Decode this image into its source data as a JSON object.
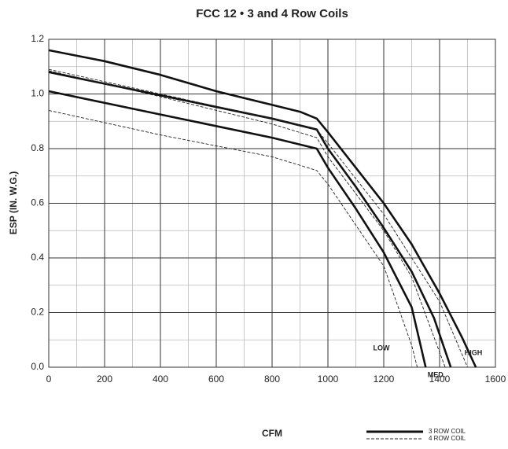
{
  "chart_data": {
    "type": "line",
    "title": "FCC 12 • 3 and 4 Row Coils",
    "x_label": "CFM",
    "y_label": "ESP (IN. W.G.)",
    "xlim": [
      0,
      1600
    ],
    "ylim": [
      0,
      1.2
    ],
    "xticks": [
      0,
      200,
      400,
      600,
      800,
      1000,
      1200,
      1400,
      1600
    ],
    "yticks": [
      {
        "value": 0,
        "label": "0.0"
      },
      0.2,
      0.4,
      0.6,
      0.8,
      {
        "value": 1,
        "label": "1.0"
      },
      1.2
    ],
    "x_minor_ticks": [
      100,
      300,
      500,
      700,
      900,
      1100,
      1300,
      1500
    ],
    "y_minor_ticks": [
      0.1,
      0.3,
      0.5,
      0.7,
      0.9,
      1.1
    ],
    "grid": true,
    "series": [
      {
        "name": "3 ROW COIL",
        "color": "#111111",
        "dashed": false,
        "curves": [
          {
            "x": [
              0,
              200,
              400,
              600,
              800,
              900,
              960,
              1000,
              1100,
              1200,
              1300,
              1400,
              1480,
              1530
            ],
            "values": [
              1.16,
              1.12,
              1.07,
              1.01,
              0.96,
              0.935,
              0.91,
              0.86,
              0.73,
              0.6,
              0.45,
              0.27,
              0.11,
              0
            ]
          },
          {
            "x": [
              0,
              400,
              800,
              960,
              1000,
              1100,
              1200,
              1300,
              1380,
              1440
            ],
            "values": [
              1.08,
              0.995,
              0.91,
              0.87,
              0.8,
              0.66,
              0.51,
              0.35,
              0.18,
              0
            ]
          },
          {
            "x": [
              0,
              400,
              800,
              960,
              1000,
              1100,
              1200,
              1300,
              1350
            ],
            "values": [
              1.01,
              0.925,
              0.84,
              0.8,
              0.73,
              0.58,
              0.42,
              0.22,
              0
            ]
          }
        ]
      },
      {
        "name": "4 ROW COIL",
        "color": "#222222",
        "dashed": true,
        "curves": [
          {
            "x": [
              0,
              400,
              800,
              960,
              1000,
              1200,
              1400,
              1500
            ],
            "values": [
              1.09,
              1.0,
              0.91,
              0.87,
              0.82,
              0.56,
              0.24,
              0
            ]
          },
          {
            "x": [
              0,
              400,
              800,
              960,
              1000,
              1200,
              1300,
              1420
            ],
            "values": [
              1.085,
              0.99,
              0.89,
              0.84,
              0.77,
              0.5,
              0.33,
              0
            ]
          },
          {
            "x": [
              0,
              400,
              800,
              960,
              1000,
              1200,
              1300,
              1320
            ],
            "values": [
              0.94,
              0.85,
              0.77,
              0.72,
              0.67,
              0.37,
              0.08,
              0
            ]
          }
        ]
      }
    ],
    "annotations": [
      "LOW",
      "MED.",
      "HIGH"
    ]
  }
}
